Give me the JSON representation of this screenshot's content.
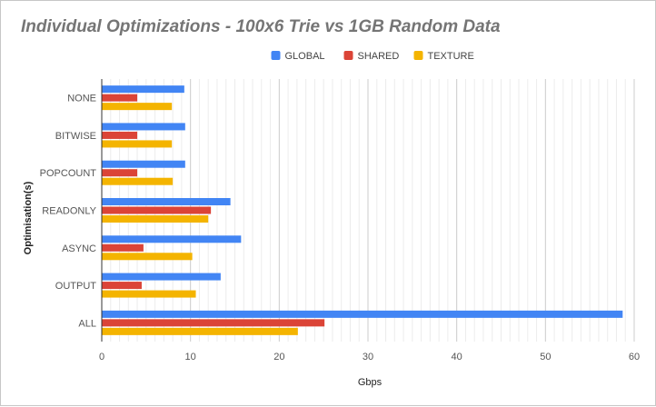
{
  "chart_data": {
    "type": "bar",
    "orientation": "horizontal",
    "title": "Individual Optimizations - 100x6 Trie vs 1GB Random Data",
    "xlabel": "Gbps",
    "ylabel": "Optimisation(s)",
    "categories": [
      "NONE",
      "BITWISE",
      "POPCOUNT",
      "READONLY",
      "ASYNC",
      "OUTPUT",
      "ALL"
    ],
    "series": [
      {
        "name": "GLOBAL",
        "color": "#4285f4",
        "values": [
          9.3,
          9.4,
          9.4,
          14.5,
          15.7,
          13.4,
          58.7
        ]
      },
      {
        "name": "SHARED",
        "color": "#db4437",
        "values": [
          4.0,
          4.0,
          4.0,
          12.3,
          4.7,
          4.5,
          25.1
        ]
      },
      {
        "name": "TEXTURE",
        "color": "#f4b400",
        "values": [
          7.9,
          7.9,
          8.0,
          12.0,
          10.2,
          10.6,
          22.1
        ]
      }
    ],
    "xlim": [
      0,
      60
    ],
    "xticks": [
      0,
      10,
      20,
      30,
      40,
      50,
      60
    ],
    "grid": true,
    "legend_position": "top"
  }
}
